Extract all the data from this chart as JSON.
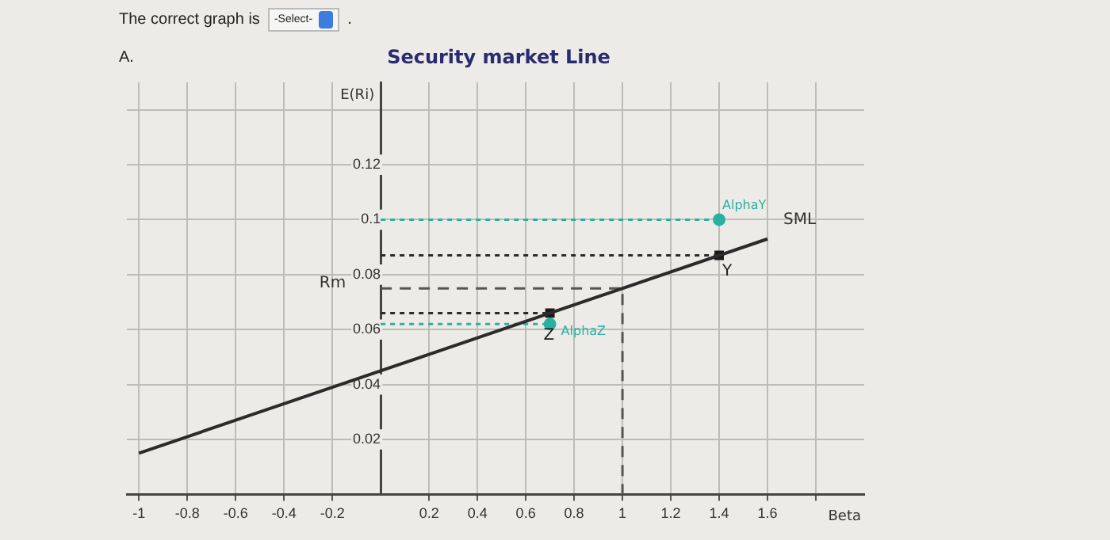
{
  "chart_data": {
    "type": "line",
    "title": "Security market Line",
    "xlabel": "Beta",
    "ylabel": "E(Ri)",
    "xlim": [
      -1.05,
      2.0
    ],
    "ylim": [
      0,
      0.15
    ],
    "xticks": [
      -1,
      -0.8,
      -0.6,
      -0.4,
      -0.2,
      0.2,
      0.4,
      0.6,
      0.8,
      1,
      1.2,
      1.4,
      1.6,
      {
        "value": 1.8,
        "label": null
      }
    ],
    "yticks": [
      0.02,
      0.04,
      0.06,
      0.08,
      0.1,
      0.12,
      {
        "value": 0.14,
        "label": null
      }
    ],
    "grid": true,
    "legend": false,
    "series": [
      {
        "name": "SML",
        "color": "#2b2b2b",
        "marker": "none",
        "line_style": "solid",
        "x": [
          -1,
          1.6
        ],
        "values": [
          0.015,
          0.093
        ]
      },
      {
        "type": "line",
        "color": "#2ab0a0",
        "marker": "none",
        "line_style": "dotted",
        "x": [
          0,
          1.4
        ],
        "values": [
          0.1,
          0.1
        ]
      },
      {
        "type": "line",
        "color": "#2b2b2b",
        "marker": "none",
        "line_style": "dotted",
        "x": [
          0,
          1.4
        ],
        "values": [
          0.087,
          0.087
        ]
      },
      {
        "name": "Rm",
        "color": "#555555",
        "marker": "none",
        "line_style": "dashed",
        "x": [
          0,
          1,
          1
        ],
        "values": [
          0.075,
          0.075,
          0
        ]
      },
      {
        "type": "line",
        "color": "#2b2b2b",
        "marker": "none",
        "line_style": "dotted",
        "x": [
          0,
          0.7
        ],
        "values": [
          0.066,
          0.066
        ]
      },
      {
        "type": "line",
        "color": "#2ab0a0",
        "marker": "none",
        "line_style": "dotted",
        "x": [
          0,
          0.7
        ],
        "values": [
          0.062,
          0.062
        ]
      },
      {
        "type": "scatter",
        "color": "#1a1a1a",
        "marker": "square",
        "x": [
          0.7,
          1.4
        ],
        "values": [
          0.066,
          0.087
        ],
        "value_labels": [
          "Z",
          "Y"
        ]
      },
      {
        "type": "scatter",
        "color": "#2ab0a0",
        "marker": "circle",
        "x": [
          0.7,
          1.4
        ],
        "values": [
          0.062,
          0.1
        ],
        "value_labels": [
          "AlphaZ",
          "AlphaY"
        ]
      }
    ],
    "annotations": [
      "The correct graph is",
      "-Select-",
      ".",
      "A."
    ]
  }
}
